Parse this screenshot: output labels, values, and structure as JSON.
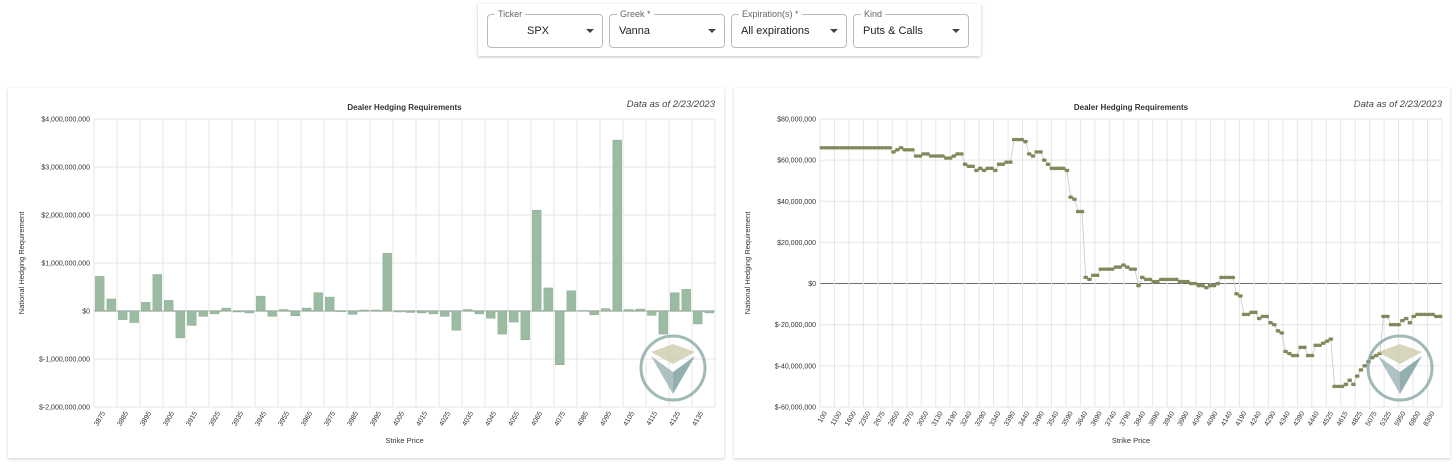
{
  "filters": [
    {
      "label": "Ticker",
      "value": "SPX",
      "align": "center"
    },
    {
      "label": "Greek *",
      "value": "Vanna",
      "align": "left"
    },
    {
      "label": "Expiration(s) *",
      "value": "All expirations",
      "align": "left"
    },
    {
      "label": "Kind",
      "value": "Puts & Calls",
      "align": "left"
    }
  ],
  "colors": {
    "bar": "#9bbba2",
    "bar_edge": "#86a68d",
    "dot": "#84885a",
    "grid": "#e6e6e6"
  },
  "chart_data": [
    {
      "type": "bar",
      "title": "Dealer Hedging Requirements",
      "as_of": "Data as of 2/23/2023",
      "xlabel": "Strike Price",
      "ylabel": "National Hedging Requirement",
      "ylim": [
        -2000000000,
        4000000000
      ],
      "yticks": [
        {
          "v": 4000000000,
          "t": "$4,000,000,000"
        },
        {
          "v": 3000000000,
          "t": "$3,000,000,000"
        },
        {
          "v": 2000000000,
          "t": "$2,000,000,000"
        },
        {
          "v": 1000000000,
          "t": "$1,000,000,000"
        },
        {
          "v": 0,
          "t": "$0"
        },
        {
          "v": -1000000000,
          "t": "$-1,000,000,000"
        },
        {
          "v": -2000000000,
          "t": "$-2,000,000,000"
        }
      ],
      "tick_labels": [
        "3875",
        "3885",
        "3895",
        "3905",
        "3915",
        "3925",
        "3935",
        "3945",
        "3955",
        "3965",
        "3975",
        "3985",
        "3995",
        "4005",
        "4015",
        "4025",
        "4035",
        "4045",
        "4055",
        "4065",
        "4075",
        "4085",
        "4095",
        "4105",
        "4115",
        "4125",
        "4135"
      ],
      "values": [
        720000000,
        250000000,
        -180000000,
        -240000000,
        180000000,
        760000000,
        220000000,
        -560000000,
        -300000000,
        -110000000,
        -60000000,
        60000000,
        -20000000,
        -40000000,
        310000000,
        -110000000,
        30000000,
        -100000000,
        60000000,
        380000000,
        290000000,
        -10000000,
        -70000000,
        20000000,
        20000000,
        1200000000,
        -20000000,
        -30000000,
        -40000000,
        -60000000,
        -110000000,
        -400000000,
        30000000,
        -60000000,
        -150000000,
        -480000000,
        -230000000,
        -600000000,
        2100000000,
        480000000,
        -1120000000,
        420000000,
        10000000,
        -80000000,
        50000000,
        3560000000,
        30000000,
        40000000,
        -90000000,
        -480000000,
        380000000,
        450000000,
        -270000000,
        -40000000
      ]
    },
    {
      "type": "scatter",
      "title": "Dealer Hedging Requirements",
      "as_of": "Data as of 2/23/2023",
      "xlabel": "Strike Price",
      "ylabel": "National Hedging Requirement",
      "ylim": [
        -60000000,
        80000000
      ],
      "yticks": [
        {
          "v": 80000000,
          "t": "$80,000,000"
        },
        {
          "v": 60000000,
          "t": "$60,000,000"
        },
        {
          "v": 40000000,
          "t": "$40,000,000"
        },
        {
          "v": 20000000,
          "t": "$20,000,000"
        },
        {
          "v": 0,
          "t": "$0"
        },
        {
          "v": -20000000,
          "t": "$-20,000,000"
        },
        {
          "v": -40000000,
          "t": "$-40,000,000"
        },
        {
          "v": -60000000,
          "t": "$-60,000,000"
        }
      ],
      "tick_labels": [
        "100",
        "1100",
        "1600",
        "2350",
        "2675",
        "2850",
        "2970",
        "3050",
        "3130",
        "3190",
        "3240",
        "3290",
        "3340",
        "3390",
        "3440",
        "3490",
        "3540",
        "3590",
        "3640",
        "3690",
        "3740",
        "3790",
        "3840",
        "3890",
        "3940",
        "3990",
        "4040",
        "4090",
        "4140",
        "4190",
        "4240",
        "4290",
        "4340",
        "4390",
        "4440",
        "4525",
        "4615",
        "4825",
        "5075",
        "5325",
        "5950",
        "6800",
        "8300"
      ],
      "values": [
        66,
        66,
        66,
        66,
        66,
        66,
        66,
        66,
        66,
        66,
        66,
        66,
        66,
        66,
        66,
        66,
        66,
        66,
        66,
        64,
        65,
        66,
        65,
        65,
        65,
        62,
        62,
        63,
        63,
        62,
        62,
        62,
        62,
        61,
        61,
        62,
        63,
        63,
        58,
        57,
        57,
        55,
        56,
        55,
        56,
        56,
        55,
        58,
        58,
        59,
        59,
        70,
        70,
        70,
        69,
        63,
        62,
        64,
        64,
        60,
        58,
        56,
        56,
        56,
        56,
        55,
        42,
        41,
        35,
        35,
        3,
        2,
        4,
        4,
        7,
        7,
        7,
        7,
        8,
        8,
        9,
        8,
        7,
        7,
        -1,
        3,
        2,
        2,
        1,
        1,
        2,
        2,
        2,
        2,
        2,
        1,
        1,
        1,
        0,
        0,
        -1,
        -1,
        -2,
        -1,
        -1,
        0,
        3,
        3,
        3,
        3,
        -5,
        -6,
        -15,
        -15,
        -14,
        -14,
        -17,
        -16,
        -16,
        -19,
        -20,
        -23,
        -24,
        -33,
        -34,
        -35,
        -35,
        -31,
        -31,
        -35,
        -35,
        -30,
        -30,
        -29,
        -28,
        -27,
        -50,
        -50,
        -50,
        -49,
        -47,
        -49,
        -45,
        -42,
        -40,
        -38,
        -36,
        -35,
        -34,
        -16,
        -16,
        -20,
        -20,
        -20,
        -18,
        -17,
        -19,
        -16,
        -15,
        -15,
        -15,
        -15,
        -15,
        -16,
        -16
      ]
    }
  ]
}
